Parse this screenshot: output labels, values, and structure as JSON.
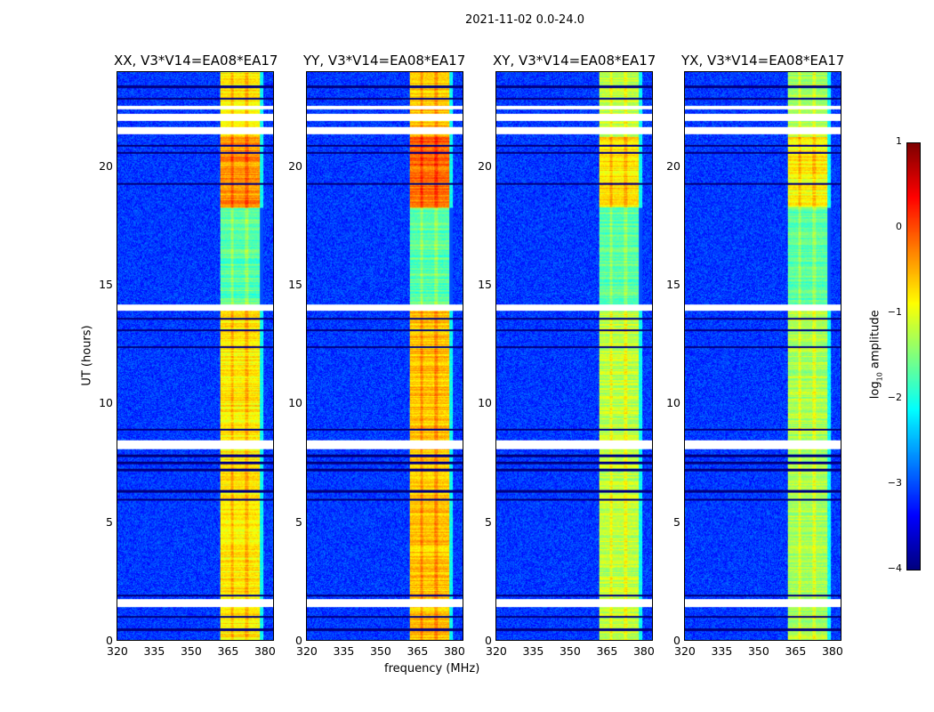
{
  "suptitle": "2021-11-02 0.0-24.0",
  "chart_data": [
    {
      "type": "heatmap",
      "title": "XX, V3*V14=EA08*EA17",
      "xlabel": "",
      "ylabel": "UT (hours)",
      "xlim": [
        320,
        384
      ],
      "ylim": [
        0,
        24
      ],
      "xticks": [
        "320",
        "335",
        "350",
        "365",
        "380"
      ],
      "yticks": [
        "0",
        "5",
        "10",
        "15",
        "20"
      ],
      "band_mhz": [
        362,
        380
      ],
      "peak_log_amp": -0.3
    },
    {
      "type": "heatmap",
      "title": "YY, V3*V14=EA08*EA17",
      "xlabel": "frequency (MHz)",
      "ylabel": "",
      "xlim": [
        320,
        384
      ],
      "ylim": [
        0,
        24
      ],
      "xticks": [
        "320",
        "335",
        "350",
        "365",
        "380"
      ],
      "yticks": [
        "0",
        "5",
        "10",
        "15",
        "20"
      ],
      "band_mhz": [
        362,
        380
      ],
      "peak_log_amp": -0.1
    },
    {
      "type": "heatmap",
      "title": "XY, V3*V14=EA08*EA17",
      "xlabel": "",
      "ylabel": "",
      "xlim": [
        320,
        384
      ],
      "ylim": [
        0,
        24
      ],
      "xticks": [
        "320",
        "335",
        "350",
        "365",
        "380"
      ],
      "yticks": [
        "0",
        "5",
        "10",
        "15",
        "20"
      ],
      "band_mhz": [
        362,
        380
      ],
      "peak_log_amp": -0.7
    },
    {
      "type": "heatmap",
      "title": "YX, V3*V14=EA08*EA17",
      "xlabel": "",
      "ylabel": "",
      "xlim": [
        320,
        384
      ],
      "ylim": [
        0,
        24
      ],
      "xticks": [
        "320",
        "335",
        "350",
        "365",
        "380"
      ],
      "yticks": [
        "0",
        "5",
        "10",
        "15",
        "20"
      ],
      "band_mhz": [
        362,
        380
      ],
      "peak_log_amp": -0.8
    }
  ],
  "colorbar": {
    "label": "log10 amplitude",
    "label_main": "log",
    "label_sub": "10",
    "label_rest": " amplitude",
    "range": [
      -4,
      1
    ],
    "ticks": [
      "1",
      "0",
      "−1",
      "−2",
      "−3",
      "−4"
    ],
    "colormap": "jet"
  },
  "flagged_hours": [
    [
      1.4,
      1.75
    ],
    [
      8.1,
      8.45
    ],
    [
      13.95,
      14.2
    ],
    [
      21.4,
      21.7
    ],
    [
      21.95,
      22.25
    ],
    [
      22.45,
      22.6
    ]
  ],
  "dark_hours": [
    0.45,
    1.0,
    1.9,
    5.95,
    6.3,
    7.2,
    7.5,
    7.8,
    8.9,
    12.4,
    13.1,
    13.6,
    19.3,
    20.6,
    20.9,
    22.9,
    23.4
  ]
}
